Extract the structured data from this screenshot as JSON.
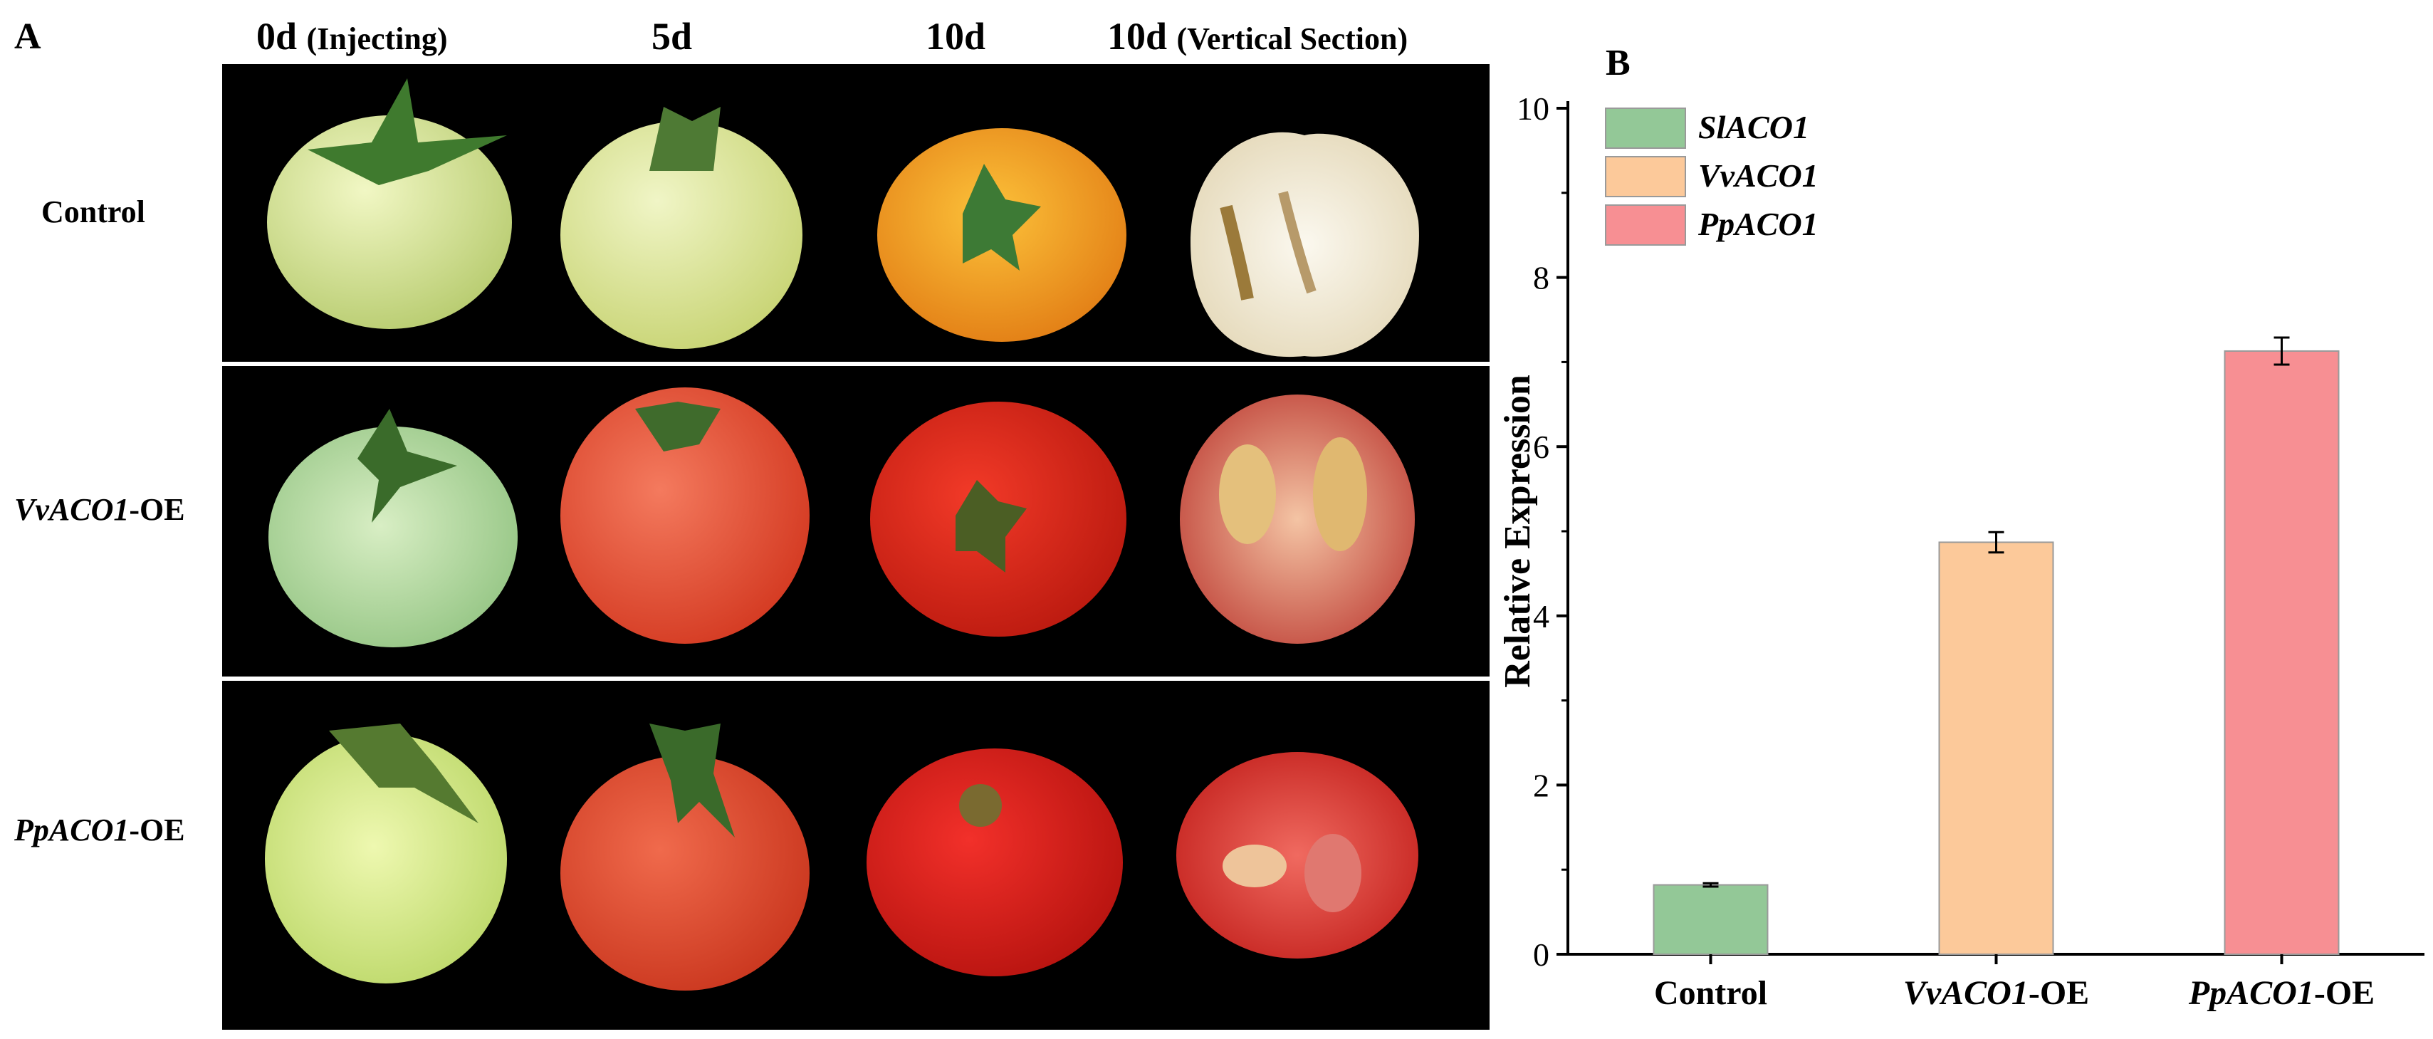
{
  "panel_a": {
    "letter": "A",
    "columns": [
      {
        "main": "0d",
        "sub": "(Injecting)"
      },
      {
        "main": "5d",
        "sub": ""
      },
      {
        "main": "10d",
        "sub": ""
      },
      {
        "main": "10d",
        "sub": "(Vertical Section)"
      }
    ],
    "rows": [
      {
        "italic": "",
        "plain": "Control"
      },
      {
        "italic": "VvACO1",
        "plain": "-OE"
      },
      {
        "italic": "PpACO1",
        "plain": "-OE"
      }
    ],
    "fruit_colors": [
      [
        "#d9e6a0",
        "#d8e6a2",
        "#f0a020",
        "#f3ede0"
      ],
      [
        "#b7dba0",
        "#e8543c",
        "#e02818",
        "#d67560"
      ],
      [
        "#d6ea8a",
        "#e04830",
        "#dd1f18",
        "#dc3c3a"
      ]
    ]
  },
  "chart_data": {
    "panel_letter": "B",
    "type": "bar",
    "categories": [
      "Control",
      "VvACO1-OE",
      "PpACO1-OE"
    ],
    "category_labels": [
      {
        "italic": "",
        "plain": "Control"
      },
      {
        "italic": "VvACO1",
        "plain": "-OE"
      },
      {
        "italic": "PpACO1",
        "plain": "-OE"
      }
    ],
    "values": [
      0.82,
      4.87,
      7.13
    ],
    "errors": [
      0.02,
      0.12,
      0.16
    ],
    "colors": [
      "#93c897",
      "#fcc99a",
      "#f78f93"
    ],
    "ylabel": "Relative Expression",
    "ylim": [
      0,
      10
    ],
    "yticks": [
      0,
      2,
      4,
      6,
      8,
      10
    ],
    "legend": [
      {
        "label": "SlACO1",
        "color": "#93c897"
      },
      {
        "label": "VvACO1",
        "color": "#fcc99a"
      },
      {
        "label": "PpACO1",
        "color": "#f78f93"
      }
    ],
    "legend_position": "top-left"
  }
}
